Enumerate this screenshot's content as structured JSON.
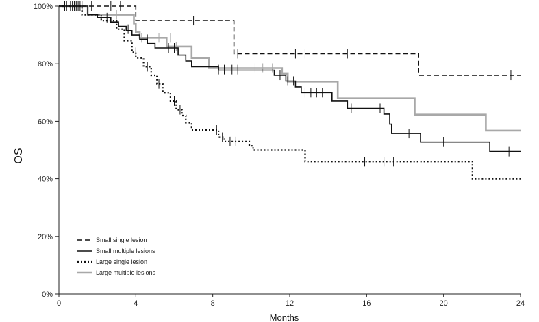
{
  "chart_data": {
    "type": "line",
    "subtype": "kaplan-meier",
    "title": "",
    "xlabel": "Months",
    "ylabel": "OS",
    "xlim": [
      0,
      24
    ],
    "ylim": [
      0,
      100
    ],
    "x_ticks": [
      0,
      4,
      8,
      12,
      16,
      20,
      24
    ],
    "x_tick_labels": [
      "0",
      "4",
      "8",
      "12",
      "16",
      "20",
      "24"
    ],
    "y_ticks": [
      0,
      20,
      40,
      60,
      80,
      100
    ],
    "y_tick_labels": [
      "0%",
      "20%",
      "40%",
      "60%",
      "80%",
      "100%"
    ],
    "grid": false,
    "legend_position": "bottom-left",
    "series": [
      {
        "name": "Small single lesion",
        "style": "dashed",
        "color": "#111111",
        "steps": [
          [
            0,
            100
          ],
          [
            4,
            100
          ],
          [
            4,
            95
          ],
          [
            9.1,
            95
          ],
          [
            9.1,
            83.5
          ],
          [
            18.7,
            83.5
          ],
          [
            18.7,
            76
          ],
          [
            24,
            76
          ]
        ],
        "censors": [
          [
            0.3,
            100
          ],
          [
            0.6,
            100
          ],
          [
            0.9,
            100
          ],
          [
            1.2,
            100
          ],
          [
            1.7,
            100
          ],
          [
            2.7,
            100
          ],
          [
            3.2,
            100
          ],
          [
            7,
            95
          ],
          [
            9.3,
            83.5
          ],
          [
            12.3,
            83.5
          ],
          [
            12.8,
            83.5
          ],
          [
            15,
            83.5
          ],
          [
            23.5,
            76
          ]
        ]
      },
      {
        "name": "Small multiple lesions",
        "style": "solid",
        "color": "#111111",
        "steps": [
          [
            0,
            100
          ],
          [
            1.5,
            100
          ],
          [
            1.5,
            97
          ],
          [
            2,
            97
          ],
          [
            2,
            96
          ],
          [
            2.7,
            96
          ],
          [
            2.7,
            94.5
          ],
          [
            3.1,
            94.5
          ],
          [
            3.1,
            93
          ],
          [
            3.5,
            93
          ],
          [
            3.5,
            91.5
          ],
          [
            3.8,
            91.5
          ],
          [
            3.8,
            90
          ],
          [
            4.2,
            90
          ],
          [
            4.2,
            88.5
          ],
          [
            4.6,
            88.5
          ],
          [
            4.6,
            87
          ],
          [
            5,
            87
          ],
          [
            5,
            85.5
          ],
          [
            6.2,
            85.5
          ],
          [
            6.2,
            83
          ],
          [
            6.6,
            83
          ],
          [
            6.6,
            81
          ],
          [
            6.9,
            81
          ],
          [
            6.9,
            79
          ],
          [
            8.3,
            79
          ],
          [
            8.3,
            77.8
          ],
          [
            11.2,
            77.8
          ],
          [
            11.2,
            76
          ],
          [
            11.8,
            76
          ],
          [
            11.8,
            74
          ],
          [
            12.3,
            74
          ],
          [
            12.3,
            72
          ],
          [
            12.6,
            72
          ],
          [
            12.6,
            70
          ],
          [
            14.2,
            70
          ],
          [
            14.2,
            67
          ],
          [
            15,
            67
          ],
          [
            15,
            64.5
          ],
          [
            16.9,
            64.5
          ],
          [
            16.9,
            62.5
          ],
          [
            17.2,
            62.5
          ],
          [
            17.2,
            59
          ],
          [
            17.3,
            59
          ],
          [
            17.3,
            55.8
          ],
          [
            18.8,
            55.8
          ],
          [
            18.8,
            52.8
          ],
          [
            22.4,
            52.8
          ],
          [
            22.4,
            49.5
          ],
          [
            24,
            49.5
          ]
        ],
        "censors": [
          [
            0.3,
            100
          ],
          [
            0.8,
            100
          ],
          [
            1.1,
            100
          ],
          [
            2.5,
            96
          ],
          [
            4.6,
            88.5
          ],
          [
            5.7,
            85.5
          ],
          [
            6,
            85.5
          ],
          [
            8.3,
            78
          ],
          [
            8.6,
            78
          ],
          [
            9,
            78
          ],
          [
            9.3,
            78
          ],
          [
            11.5,
            76
          ],
          [
            11.9,
            74
          ],
          [
            12.2,
            74
          ],
          [
            12.8,
            70
          ],
          [
            13.1,
            70
          ],
          [
            13.4,
            70
          ],
          [
            13.7,
            70
          ],
          [
            15.2,
            64.5
          ],
          [
            16.7,
            64.5
          ],
          [
            18.2,
            55.8
          ],
          [
            20,
            52.8
          ],
          [
            23.4,
            49.5
          ]
        ]
      },
      {
        "name": "Large single lesion",
        "style": "dotted",
        "color": "#111111",
        "steps": [
          [
            0,
            100
          ],
          [
            1.2,
            100
          ],
          [
            1.2,
            97
          ],
          [
            2.2,
            97
          ],
          [
            2.2,
            95
          ],
          [
            3,
            95
          ],
          [
            3,
            92
          ],
          [
            3.4,
            92
          ],
          [
            3.4,
            88
          ],
          [
            3.8,
            88
          ],
          [
            3.8,
            84
          ],
          [
            4,
            84
          ],
          [
            4,
            82
          ],
          [
            4.4,
            82
          ],
          [
            4.4,
            79
          ],
          [
            4.8,
            79
          ],
          [
            4.8,
            76
          ],
          [
            5.1,
            76
          ],
          [
            5.1,
            73
          ],
          [
            5.4,
            73
          ],
          [
            5.4,
            70
          ],
          [
            5.8,
            70
          ],
          [
            5.8,
            67
          ],
          [
            6.1,
            67
          ],
          [
            6.1,
            64
          ],
          [
            6.4,
            64
          ],
          [
            6.4,
            62
          ],
          [
            6.6,
            62
          ],
          [
            6.6,
            59.5
          ],
          [
            6.9,
            59.5
          ],
          [
            6.9,
            57
          ],
          [
            8.3,
            57
          ],
          [
            8.3,
            54.5
          ],
          [
            8.6,
            54.5
          ],
          [
            8.6,
            53
          ],
          [
            9.9,
            53
          ],
          [
            9.9,
            51.5
          ],
          [
            10.1,
            51.5
          ],
          [
            10.1,
            50
          ],
          [
            12.8,
            50
          ],
          [
            12.8,
            46
          ],
          [
            21.5,
            46
          ],
          [
            21.5,
            40
          ],
          [
            24,
            40
          ]
        ],
        "censors": [
          [
            0.4,
            100
          ],
          [
            0.7,
            100
          ],
          [
            1,
            100
          ],
          [
            3.6,
            92
          ],
          [
            4,
            84
          ],
          [
            4.6,
            79
          ],
          [
            5.2,
            73
          ],
          [
            6,
            67
          ],
          [
            6.3,
            64
          ],
          [
            8.2,
            57
          ],
          [
            8.5,
            54.5
          ],
          [
            8.9,
            53
          ],
          [
            9.2,
            53
          ],
          [
            15.9,
            46
          ],
          [
            16.9,
            46
          ],
          [
            17.4,
            46
          ]
        ]
      },
      {
        "name": "Large multiple lesions",
        "style": "solid",
        "color": "#a8a8a8",
        "steps": [
          [
            0,
            100
          ],
          [
            1.5,
            100
          ],
          [
            1.5,
            97
          ],
          [
            3.9,
            97
          ],
          [
            3.9,
            94
          ],
          [
            4,
            94
          ],
          [
            4,
            91
          ],
          [
            4.2,
            91
          ],
          [
            4.2,
            89
          ],
          [
            5.6,
            89
          ],
          [
            5.6,
            86
          ],
          [
            6.9,
            86
          ],
          [
            6.9,
            82
          ],
          [
            7.8,
            82
          ],
          [
            7.8,
            78.5
          ],
          [
            11.6,
            78.5
          ],
          [
            11.6,
            76.5
          ],
          [
            11.9,
            76.5
          ],
          [
            11.9,
            73.8
          ],
          [
            14.5,
            73.8
          ],
          [
            14.5,
            68
          ],
          [
            18.5,
            68
          ],
          [
            18.5,
            62.3
          ],
          [
            22.2,
            62.3
          ],
          [
            22.2,
            56.8
          ],
          [
            24,
            56.8
          ]
        ],
        "censors": [
          [
            1.2,
            100
          ],
          [
            3,
            97
          ],
          [
            4.3,
            89
          ],
          [
            5.2,
            89
          ],
          [
            5.8,
            89
          ],
          [
            6.1,
            86
          ],
          [
            10.2,
            78.5
          ],
          [
            10.6,
            78.5
          ],
          [
            11.1,
            78.5
          ]
        ]
      }
    ]
  }
}
